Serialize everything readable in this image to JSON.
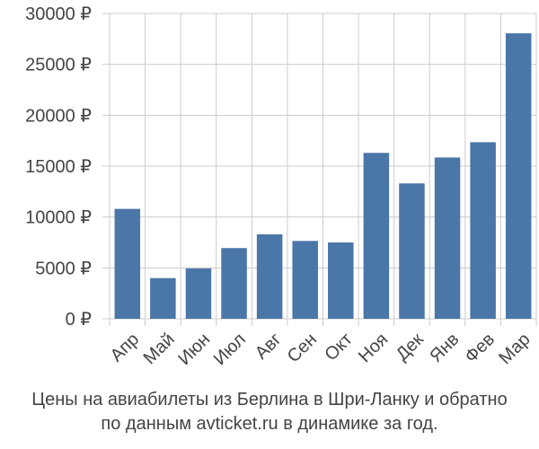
{
  "chart_data": {
    "type": "bar",
    "categories": [
      "Апр",
      "Май",
      "Июн",
      "Июл",
      "Авг",
      "Сен",
      "Окт",
      "Ноя",
      "Дек",
      "Янв",
      "Фев",
      "Мар"
    ],
    "values": [
      10800,
      4000,
      4950,
      6950,
      8300,
      7650,
      7500,
      16300,
      13300,
      15850,
      17350,
      28050
    ],
    "ylim": [
      0,
      30000
    ],
    "yticks": [
      0,
      5000,
      10000,
      15000,
      20000,
      25000,
      30000
    ],
    "y_tick_suffix": " ₽",
    "bar_color": "#4a76a8",
    "grid": true,
    "grid_color": "#cccccc",
    "caption_line1": "Цены на авиабилеты из Берлина в Шри-Ланку и обратно",
    "caption_line2": "по данным avticket.ru в динамике за год."
  }
}
